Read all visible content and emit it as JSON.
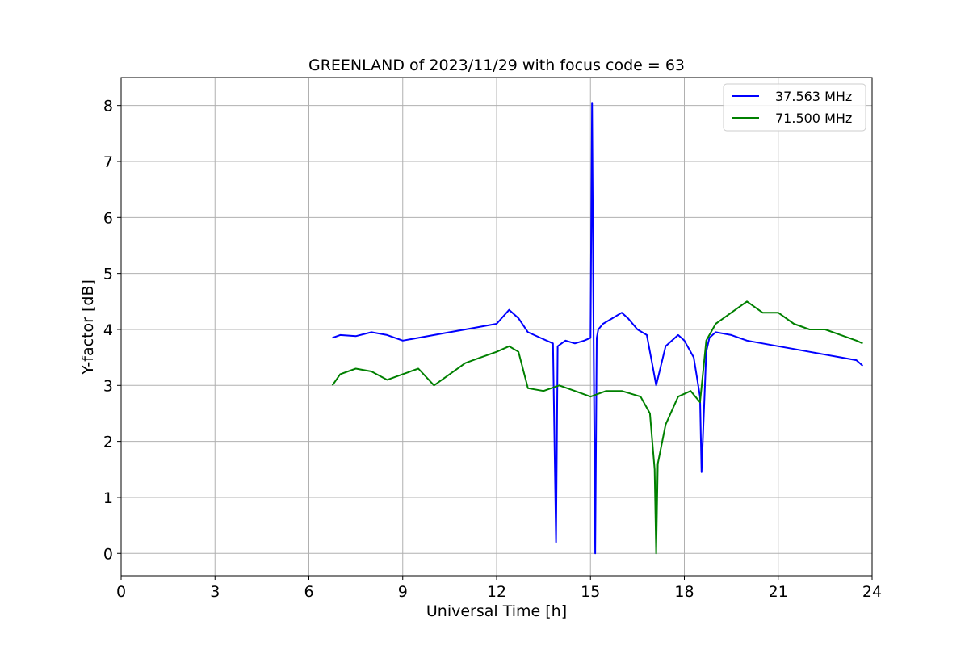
{
  "chart_data": {
    "type": "line",
    "title": "GREENLAND of 2023/11/29 with focus code = 63",
    "xlabel": "Universal Time [h]",
    "ylabel": "Y-factor [dB]",
    "xlim": [
      0,
      24
    ],
    "ylim": [
      -0.4,
      8.5
    ],
    "xticks": [
      0,
      3,
      6,
      9,
      12,
      15,
      18,
      21,
      24
    ],
    "yticks": [
      0,
      1,
      2,
      3,
      4,
      5,
      6,
      7,
      8
    ],
    "grid": true,
    "legend_position": "top-right",
    "series": [
      {
        "name": "37.563 MHz",
        "color": "#0000ff",
        "x": [
          6.75,
          7.0,
          7.5,
          8.0,
          8.5,
          9.0,
          9.5,
          10.0,
          10.5,
          11.0,
          11.5,
          12.0,
          12.4,
          12.7,
          13.0,
          13.4,
          13.8,
          13.9,
          13.95,
          14.2,
          14.5,
          14.8,
          15.0,
          15.05,
          15.1,
          15.15,
          15.2,
          15.25,
          15.4,
          15.7,
          16.0,
          16.2,
          16.5,
          16.8,
          17.0,
          17.1,
          17.4,
          17.8,
          18.0,
          18.3,
          18.5,
          18.55,
          18.7,
          18.8,
          19.0,
          19.5,
          20.0,
          20.5,
          21.0,
          21.5,
          22.0,
          22.5,
          23.0,
          23.5,
          23.7
        ],
        "y": [
          3.85,
          3.9,
          3.88,
          3.95,
          3.9,
          3.8,
          3.85,
          3.9,
          3.95,
          4.0,
          4.05,
          4.1,
          4.35,
          4.2,
          3.95,
          3.85,
          3.75,
          0.2,
          3.7,
          3.8,
          3.75,
          3.8,
          3.85,
          8.05,
          3.9,
          0.0,
          3.85,
          4.0,
          4.1,
          4.2,
          4.3,
          4.2,
          4.0,
          3.9,
          3.3,
          3.0,
          3.7,
          3.9,
          3.8,
          3.5,
          2.8,
          1.45,
          3.6,
          3.85,
          3.95,
          3.9,
          3.8,
          3.75,
          3.7,
          3.65,
          3.6,
          3.55,
          3.5,
          3.45,
          3.35
        ]
      },
      {
        "name": "71.500 MHz",
        "color": "#008000",
        "x": [
          6.75,
          7.0,
          7.5,
          8.0,
          8.5,
          9.0,
          9.5,
          10.0,
          10.5,
          11.0,
          11.5,
          12.0,
          12.4,
          12.7,
          13.0,
          13.5,
          14.0,
          14.5,
          15.0,
          15.5,
          16.0,
          16.3,
          16.6,
          16.9,
          17.05,
          17.1,
          17.15,
          17.4,
          17.8,
          18.2,
          18.5,
          18.7,
          19.0,
          19.5,
          20.0,
          20.5,
          21.0,
          21.5,
          22.0,
          22.5,
          23.0,
          23.5,
          23.7
        ],
        "y": [
          3.0,
          3.2,
          3.3,
          3.25,
          3.1,
          3.2,
          3.3,
          3.0,
          3.2,
          3.4,
          3.5,
          3.6,
          3.7,
          3.6,
          2.95,
          2.9,
          3.0,
          2.9,
          2.8,
          2.9,
          2.9,
          2.85,
          2.8,
          2.5,
          1.5,
          0.0,
          1.6,
          2.3,
          2.8,
          2.9,
          2.7,
          3.8,
          4.1,
          4.3,
          4.5,
          4.3,
          4.3,
          4.1,
          4.0,
          4.0,
          3.9,
          3.8,
          3.75
        ]
      }
    ]
  }
}
